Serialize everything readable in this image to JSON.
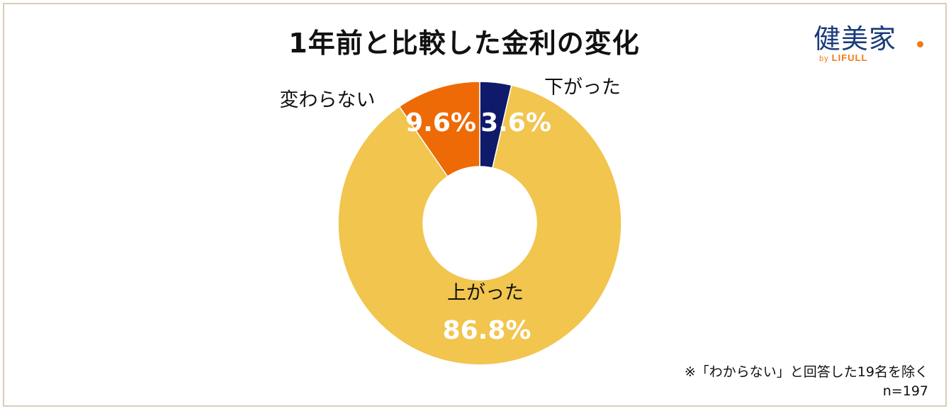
{
  "chart_data": {
    "type": "pie",
    "title": "1年前と比較した金利の変化",
    "slices": [
      {
        "label": "下がった",
        "value": 3.6,
        "value_label": "3.6%",
        "color": "#0f1a6b"
      },
      {
        "label": "上がった",
        "value": 86.8,
        "value_label": "86.8%",
        "color": "#f1c54e"
      },
      {
        "label": "変わらない",
        "value": 9.6,
        "value_label": "9.6%",
        "color": "#ee6a06"
      }
    ],
    "note": "※「わからない」と回答した19名を除く",
    "n": "n=197"
  },
  "logo": {
    "name": "健美家",
    "by": "by",
    "brand": "LIFULL"
  }
}
